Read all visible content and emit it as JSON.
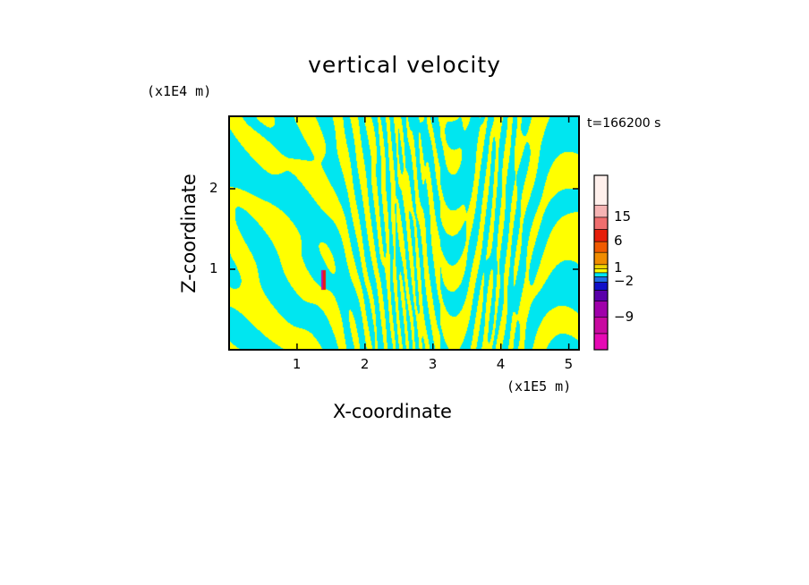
{
  "chart_data": {
    "type": "heatmap",
    "title": "vertical velocity",
    "xlabel": "X-coordinate",
    "ylabel": "Z-coordinate",
    "x_unit": "(x1E5 m)",
    "y_unit": "(x1E4 m)",
    "time_label": "t=166200 s",
    "xlim": [
      0,
      5.15
    ],
    "ylim": [
      0,
      2.9
    ],
    "x_ticks": [
      1,
      2,
      3,
      4,
      5
    ],
    "y_ticks": [
      1,
      2
    ],
    "x_tick_labels": [
      "1",
      "2",
      "3",
      "4",
      "5"
    ],
    "y_tick_labels": [
      "1",
      "2"
    ],
    "colorbar": {
      "levels": [
        -12,
        -9,
        -6,
        -4,
        -2,
        -1,
        0,
        1,
        2,
        4,
        6,
        10,
        15,
        20
      ],
      "colors": [
        "#e60ab4",
        "#c80aa0",
        "#a000aa",
        "#5a00aa",
        "#1010c8",
        "#1e6ee6",
        "#00e6f0",
        "#ffff00",
        "#f0d200",
        "#f08c00",
        "#f05a00",
        "#e61e0a",
        "#f06e6e",
        "#f5b4b4",
        "#fff0ec"
      ],
      "labels": [
        {
          "value": 15,
          "text": "15"
        },
        {
          "value": 6,
          "text": "6"
        },
        {
          "value": 1,
          "text": "1"
        },
        {
          "value": -2,
          "text": "−2"
        },
        {
          "value": -9,
          "text": "−9"
        }
      ]
    },
    "field_colors": {
      "positive": "#ffff00",
      "negative": "#00e6f0",
      "strong_up": "#e61e0a",
      "strong_down": "#c80aa0"
    },
    "strong_feature": {
      "x": 1.38,
      "z_min": 0.75,
      "z_max": 1.0
    }
  }
}
